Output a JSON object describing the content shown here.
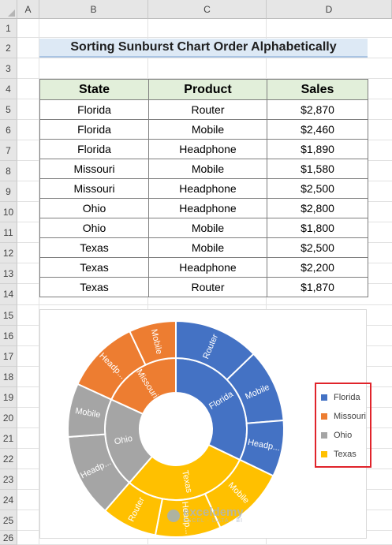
{
  "sheet": {
    "columns": [
      "A",
      "B",
      "C",
      "D"
    ],
    "rows": [
      "1",
      "2",
      "3",
      "4",
      "5",
      "6",
      "7",
      "8",
      "9",
      "10",
      "11",
      "12",
      "13",
      "14",
      "15",
      "16",
      "17",
      "18",
      "19",
      "20",
      "21",
      "22",
      "23",
      "24",
      "25",
      "26"
    ]
  },
  "title": "Sorting Sunburst Chart Order Alphabetically",
  "table": {
    "headers": [
      "State",
      "Product",
      "Sales"
    ],
    "rows": [
      [
        "Florida",
        "Router",
        "$2,870"
      ],
      [
        "Florida",
        "Mobile",
        "$2,460"
      ],
      [
        "Florida",
        "Headphone",
        "$1,890"
      ],
      [
        "Missouri",
        "Mobile",
        "$1,580"
      ],
      [
        "Missouri",
        "Headphone",
        "$2,500"
      ],
      [
        "Ohio",
        "Headphone",
        "$2,800"
      ],
      [
        "Ohio",
        "Mobile",
        "$1,800"
      ],
      [
        "Texas",
        "Mobile",
        "$2,500"
      ],
      [
        "Texas",
        "Headphone",
        "$2,200"
      ],
      [
        "Texas",
        "Router",
        "$1,870"
      ]
    ]
  },
  "chart_data": {
    "type": "sunburst",
    "legend_position": "right",
    "inner": [
      {
        "name": "Florida",
        "label": "Florida",
        "color": "#4472c4",
        "children": [
          {
            "name": "Router",
            "label": "Router",
            "value": 2870
          },
          {
            "name": "Mobile",
            "label": "Mobile",
            "value": 2460
          },
          {
            "name": "Headphone",
            "label": "Headp...",
            "value": 1890
          }
        ]
      },
      {
        "name": "Texas",
        "label": "Texas",
        "color": "#ffc000",
        "children": [
          {
            "name": "Mobile",
            "label": "Mobile",
            "value": 2500
          },
          {
            "name": "Headphone",
            "label": "Headp...",
            "value": 2200
          },
          {
            "name": "Router",
            "label": "Router",
            "value": 1870
          }
        ]
      },
      {
        "name": "Ohio",
        "label": "Ohio",
        "color": "#a5a5a5",
        "children": [
          {
            "name": "Headphone",
            "label": "Headp...",
            "value": 2800
          },
          {
            "name": "Mobile",
            "label": "Mobile",
            "value": 1800
          }
        ]
      },
      {
        "name": "Missouri",
        "label": "Missouri",
        "color": "#ed7d31",
        "children": [
          {
            "name": "Headphone",
            "label": "Headp...",
            "value": 2500
          },
          {
            "name": "Mobile",
            "label": "Mobile",
            "value": 1580
          }
        ]
      }
    ],
    "legend": [
      {
        "name": "Florida",
        "color": "#4472c4"
      },
      {
        "name": "Missouri",
        "color": "#ed7d31"
      },
      {
        "name": "Ohio",
        "color": "#a5a5a5"
      },
      {
        "name": "Texas",
        "color": "#ffc000"
      }
    ]
  },
  "watermark": {
    "name": "exceldemy",
    "tagline": "EXCEL · DATA · BI"
  }
}
